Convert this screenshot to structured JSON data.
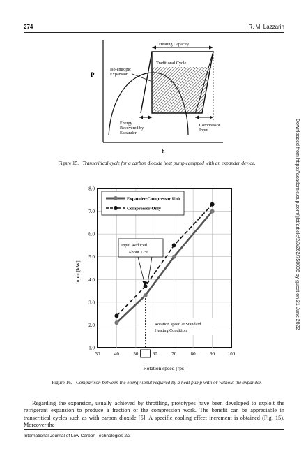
{
  "header": {
    "page_number": "274",
    "author": "R. M. Lazzarin"
  },
  "side_note": "Downloaded from https://academic.oup.com/ijlct/article/2/3/262/758006 by guest on 21 June 2022",
  "figure15": {
    "label_p": "P",
    "label_h": "h",
    "heating_capacity": "Heating Capacity",
    "traditional_cycle": "Traditional Cycle",
    "iso_entropic_1": "Iso-entropic",
    "iso_entropic_2": "Expansion",
    "energy_1": "Energy",
    "energy_2": "Recovered by",
    "energy_3": "Expander",
    "compressor_1": "Compressor",
    "compressor_2": "Input",
    "caption_num": "Figure 15.",
    "caption_text": "Transcritical cycle for a carbon dioxide heat pump equipped with an expander device."
  },
  "figure16": {
    "caption_num": "Figure 16.",
    "caption_text": "Comparison between the energy input required by a heat pump with or without the expander.",
    "annotation_input_1": "Input Reduced",
    "annotation_input_2": "About 12%",
    "annotation_rot_1": "Rotation speed at Standard",
    "annotation_rot_2": "Heating Condition",
    "marker_x_label": "55"
  },
  "chart_data": {
    "type": "line",
    "xlabel": "Rotation speed [rps]",
    "ylabel": "Input [kW]",
    "xlim": [
      30,
      100
    ],
    "ylim": [
      1.0,
      8.0
    ],
    "x_ticks": [
      "30",
      "40",
      "50",
      "60",
      "70",
      "80",
      "90",
      "100"
    ],
    "y_ticks": [
      "1.0",
      "2.0",
      "3.0",
      "4.0",
      "5.0",
      "6.0",
      "7.0",
      "8.0"
    ],
    "legend_position": "top-left",
    "series": [
      {
        "name": "Expander-Compressor Unit",
        "style": "solid",
        "marker": "circle-gray",
        "x": [
          40,
          55,
          70,
          90
        ],
        "values": [
          2.1,
          3.3,
          5.0,
          7.0
        ]
      },
      {
        "name": "Compressor Only",
        "style": "dashed",
        "marker": "circle-black",
        "x": [
          40,
          55,
          70,
          90
        ],
        "values": [
          2.4,
          3.7,
          5.5,
          7.3
        ]
      }
    ],
    "vertical_marker_x": 55
  },
  "body_text": "Regarding the expansion, usually achieved by throttling, prototypes have been developed to exploit the refrigerant expansion to produce a fraction of the compression work. The benefit can be appreciable in transcritical cycles such as with carbon dioxide [5]. A specific cooling effect increment is obtained (Fig. 15). Moreover the",
  "footer": "International Journal of Low Carbon Technologies 2/3"
}
